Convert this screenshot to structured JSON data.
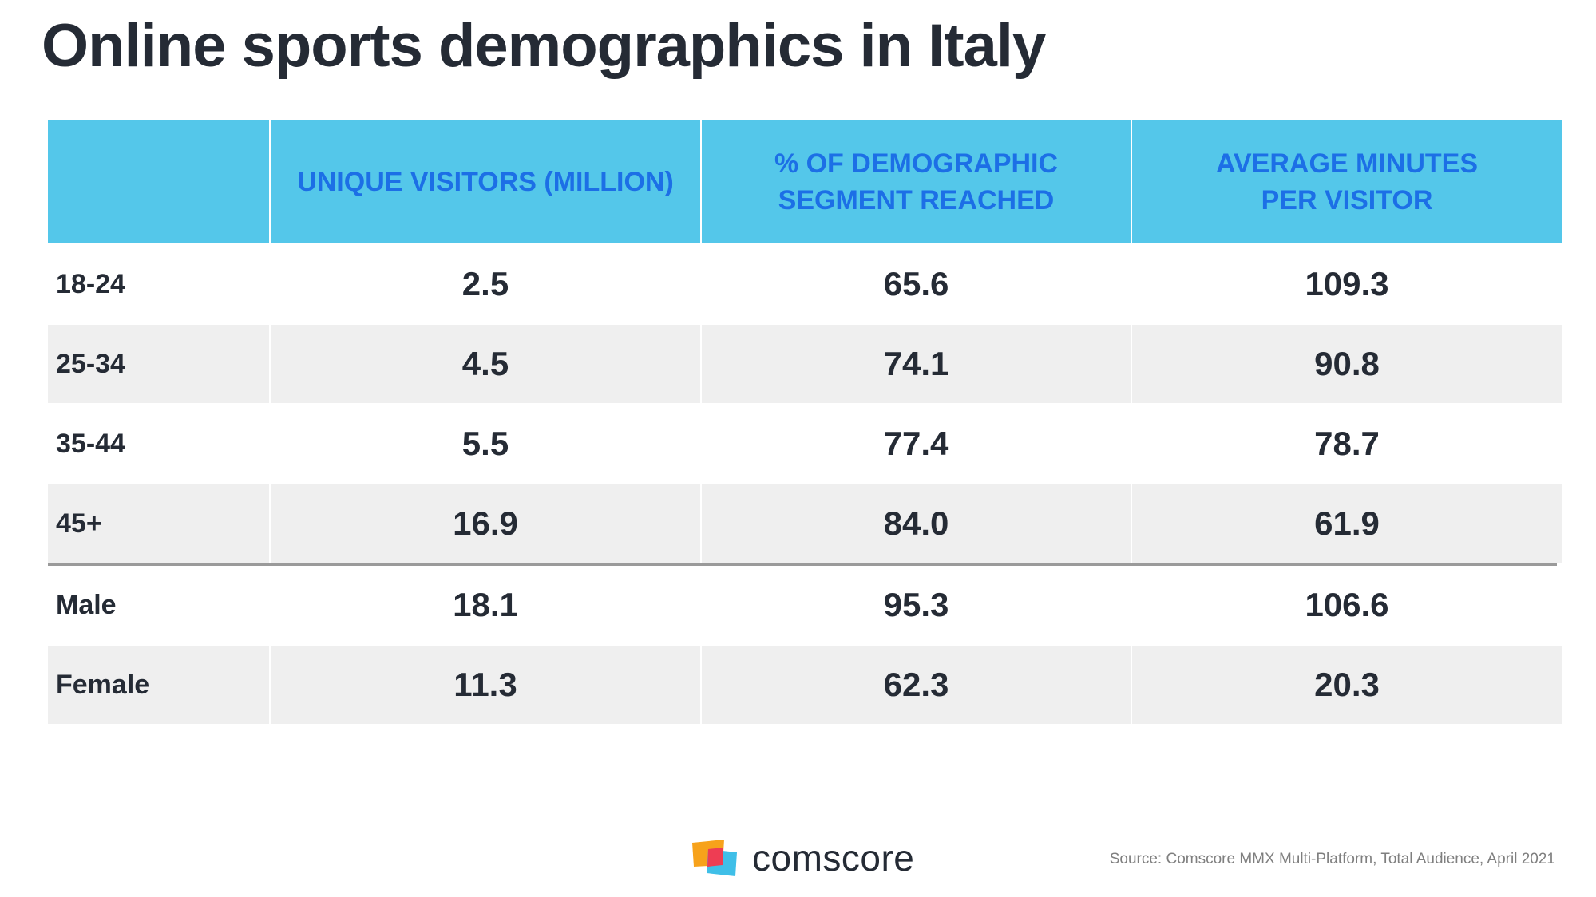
{
  "title": "Online sports demographics in Italy",
  "chart_data": {
    "type": "table",
    "title": "Online sports demographics in Italy",
    "columns": [
      "",
      "UNIQUE VISITORS (MILLION)",
      "% OF DEMOGRAPHIC SEGMENT REACHED",
      "AVERAGE MINUTES PER VISITOR"
    ],
    "header_lines": [
      [
        ""
      ],
      [
        "UNIQUE VISITORS (MILLION)"
      ],
      [
        "% OF DEMOGRAPHIC",
        "SEGMENT REACHED"
      ],
      [
        "AVERAGE MINUTES",
        "PER VISITOR"
      ]
    ],
    "rows": [
      {
        "label": "18-24",
        "values": [
          "2.5",
          "65.6",
          "109.3"
        ]
      },
      {
        "label": "25-34",
        "values": [
          "4.5",
          "74.1",
          "90.8"
        ]
      },
      {
        "label": "35-44",
        "values": [
          "5.5",
          "77.4",
          "78.7"
        ]
      },
      {
        "label": "45+",
        "values": [
          "16.9",
          "84.0",
          "61.9"
        ]
      },
      {
        "label": "Male",
        "values": [
          "18.1",
          "95.3",
          "106.6"
        ]
      },
      {
        "label": "Female",
        "values": [
          "11.3",
          "62.3",
          "20.3"
        ]
      }
    ]
  },
  "colors": {
    "header_bg": "#54c7ea",
    "header_text": "#1c6fe6",
    "shaded_row": "#efefef",
    "text": "#252b35"
  },
  "footer": {
    "brand": "comscore",
    "logo_icon": "comscore-logo-icon",
    "source": "Source: Comscore MMX Multi-Platform, Total Audience, April 2021"
  }
}
